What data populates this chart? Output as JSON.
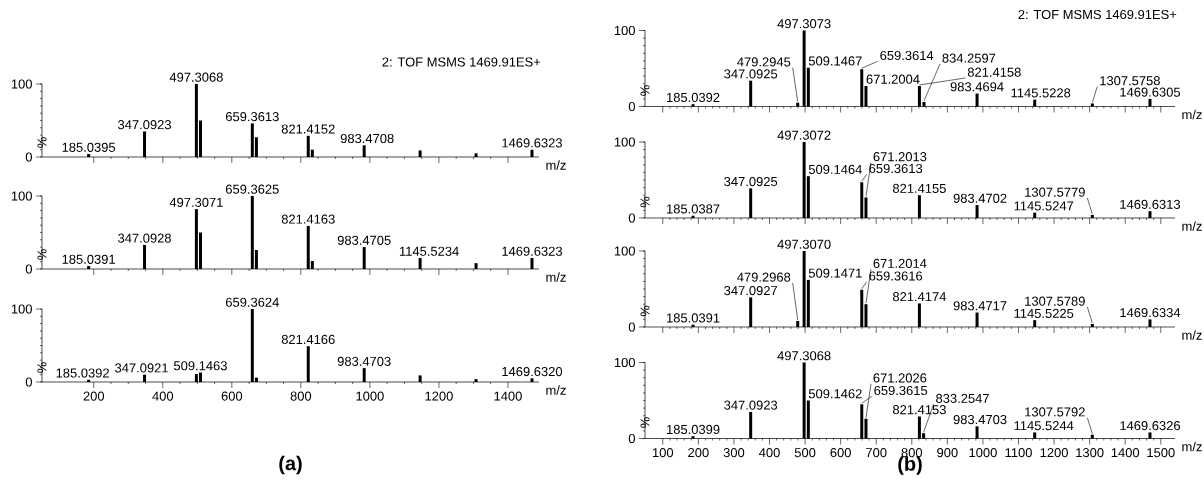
{
  "chart_data": [
    {
      "type": "bar",
      "xlabel": "m/z",
      "ylabel": "%",
      "tick_labels": "y",
      "xlim": [
        50,
        1490
      ],
      "ylim": [
        0,
        100
      ],
      "xticks": [
        200,
        400,
        600,
        800,
        1000,
        1200,
        1400
      ],
      "yticks": [
        0,
        100
      ],
      "x": [
        185.0395,
        347.0923,
        497.3068,
        509.15,
        659.3613,
        671.2,
        821.4152,
        833.25,
        983.4708,
        1145.52,
        1307.58,
        1469.6323
      ],
      "values": [
        4,
        35,
        100,
        50,
        46,
        27,
        29,
        10,
        16,
        9,
        5,
        10
      ],
      "annotations": [
        "2: TOF MSMS 1469.91ES+",
        {
          "text": "185.0395",
          "x": 185.0395,
          "y": 4
        },
        {
          "text": "347.0923",
          "x": 347.0923,
          "y": 35
        },
        {
          "text": "497.3068",
          "x": 497.3068,
          "y": 100
        },
        {
          "text": "659.3613",
          "x": 659.3613,
          "y": 46
        },
        {
          "text": "821.4152",
          "x": 821.4152,
          "y": 29
        },
        {
          "text": "983.4708",
          "x": 983.4708,
          "y": 16
        },
        {
          "text": "1469.6323",
          "x": 1469.6323,
          "y": 10
        }
      ]
    },
    {
      "type": "bar",
      "xlabel": "m/z",
      "ylabel": "%",
      "tick_labels": "y",
      "xlim": [
        50,
        1490
      ],
      "ylim": [
        0,
        100
      ],
      "xticks": [
        200,
        400,
        600,
        800,
        1000,
        1200,
        1400
      ],
      "yticks": [
        0,
        100
      ],
      "x": [
        185.0391,
        347.0928,
        497.3071,
        509.15,
        659.3625,
        671.2,
        821.4163,
        833.25,
        983.4705,
        1145.5234,
        1307.58,
        1469.6323
      ],
      "values": [
        4,
        33,
        82,
        50,
        100,
        26,
        59,
        11,
        30,
        15,
        8,
        15
      ],
      "annotations": [
        {
          "text": "185.0391",
          "x": 185.0391,
          "y": 4
        },
        {
          "text": "347.0928",
          "x": 347.0928,
          "y": 33
        },
        {
          "text": "497.3071",
          "x": 497.3071,
          "y": 82
        },
        {
          "text": "659.3625",
          "x": 659.3625,
          "y": 100
        },
        {
          "text": "821.4163",
          "x": 821.4163,
          "y": 59
        },
        {
          "text": "983.4705",
          "x": 983.4705,
          "y": 30
        },
        {
          "text": "1145.5234",
          "x": 1145.5234,
          "y": 15
        },
        {
          "text": "1469.6323",
          "x": 1469.6323,
          "y": 15
        }
      ]
    },
    {
      "type": "bar",
      "xlabel": "m/z",
      "ylabel": "%",
      "xlim": [
        50,
        1490
      ],
      "ylim": [
        0,
        100
      ],
      "xticks": [
        200,
        400,
        600,
        800,
        1000,
        1200,
        1400
      ],
      "yticks": [
        0,
        100
      ],
      "x": [
        185.0392,
        347.0921,
        497.31,
        509.1463,
        659.3624,
        671.2,
        821.4166,
        983.4703,
        1145.52,
        1307.58,
        1469.632
      ],
      "values": [
        3,
        10,
        11,
        13,
        100,
        6,
        49,
        19,
        9,
        4,
        5
      ],
      "annotations": [
        "(a)",
        {
          "text": "185.0392",
          "x": 185.0392,
          "y": 3
        },
        {
          "text": "347.0921",
          "x": 347.0921,
          "y": 10
        },
        {
          "text": "509.1463",
          "x": 509.1463,
          "y": 13
        },
        {
          "text": "659.3624",
          "x": 659.3624,
          "y": 100
        },
        {
          "text": "821.4166",
          "x": 821.4166,
          "y": 49
        },
        {
          "text": "983.4703",
          "x": 983.4703,
          "y": 19
        },
        {
          "text": "1469.6320",
          "x": 1469.632,
          "y": 5
        }
      ]
    },
    {
      "type": "bar",
      "xlabel": "m/z",
      "ylabel": "%",
      "tick_labels": "y",
      "xlim": [
        50,
        1540
      ],
      "ylim": [
        0,
        100
      ],
      "xticks": [
        100,
        200,
        300,
        400,
        500,
        600,
        700,
        800,
        900,
        1000,
        1100,
        1200,
        1300,
        1400,
        1500
      ],
      "yticks": [
        0,
        100
      ],
      "x": [
        185.0392,
        347.0925,
        479.2945,
        497.3073,
        509.1467,
        659.3614,
        671.2004,
        821.4158,
        834.2597,
        983.4694,
        1145.5228,
        1307.5758,
        1469.6305
      ],
      "values": [
        3,
        34,
        5,
        100,
        51,
        49,
        27,
        27,
        6,
        17,
        9,
        4,
        10
      ],
      "annotations": [
        "2: TOF MSMS 1469.91ES+",
        {
          "text": "185.0392",
          "x": 185.0392,
          "y": 3
        },
        {
          "text": "347.0925",
          "x": 347.0925,
          "y": 34
        },
        {
          "text": "479.2945",
          "x": 479.2945,
          "y": 5
        },
        {
          "text": "497.3073",
          "x": 497.3073,
          "y": 100
        },
        {
          "text": "509.1467",
          "x": 509.1467,
          "y": 51
        },
        {
          "text": "659.3614",
          "x": 659.3614,
          "y": 49
        },
        {
          "text": "671.2004",
          "x": 671.2004,
          "y": 27
        },
        {
          "text": "821.4158",
          "x": 821.4158,
          "y": 27
        },
        {
          "text": "834.2597",
          "x": 834.2597,
          "y": 6
        },
        {
          "text": "983.4694",
          "x": 983.4694,
          "y": 17
        },
        {
          "text": "1145.5228",
          "x": 1145.5228,
          "y": 9
        },
        {
          "text": "1307.5758",
          "x": 1307.5758,
          "y": 4
        },
        {
          "text": "1469.6305",
          "x": 1469.6305,
          "y": 10
        }
      ]
    },
    {
      "type": "bar",
      "xlabel": "m/z",
      "ylabel": "%",
      "tick_labels": "y",
      "xlim": [
        50,
        1540
      ],
      "ylim": [
        0,
        100
      ],
      "xticks": [
        100,
        200,
        300,
        400,
        500,
        600,
        700,
        800,
        900,
        1000,
        1100,
        1200,
        1300,
        1400,
        1500
      ],
      "yticks": [
        0,
        100
      ],
      "x": [
        185.0387,
        347.0925,
        497.3072,
        509.1464,
        659.3613,
        671.2013,
        821.4155,
        983.4702,
        1145.5247,
        1307.5779,
        1469.6313
      ],
      "values": [
        3,
        39,
        100,
        55,
        47,
        27,
        30,
        17,
        7,
        4,
        9
      ],
      "annotations": [
        {
          "text": "185.0387",
          "x": 185.0387,
          "y": 3
        },
        {
          "text": "347.0925",
          "x": 347.0925,
          "y": 39
        },
        {
          "text": "497.3072",
          "x": 497.3072,
          "y": 100
        },
        {
          "text": "509.1464",
          "x": 509.1464,
          "y": 55
        },
        {
          "text": "659.3613",
          "x": 659.3613,
          "y": 47
        },
        {
          "text": "671.2013",
          "x": 671.2013,
          "y": 27
        },
        {
          "text": "821.4155",
          "x": 821.4155,
          "y": 30
        },
        {
          "text": "983.4702",
          "x": 983.4702,
          "y": 17
        },
        {
          "text": "1145.5247",
          "x": 1145.5247,
          "y": 7
        },
        {
          "text": "1307.5779",
          "x": 1307.5779,
          "y": 4
        },
        {
          "text": "1469.6313",
          "x": 1469.6313,
          "y": 9
        }
      ]
    },
    {
      "type": "bar",
      "xlabel": "m/z",
      "ylabel": "%",
      "tick_labels": "y",
      "xlim": [
        50,
        1540
      ],
      "ylim": [
        0,
        100
      ],
      "xticks": [
        100,
        200,
        300,
        400,
        500,
        600,
        700,
        800,
        900,
        1000,
        1100,
        1200,
        1300,
        1400,
        1500
      ],
      "yticks": [
        0,
        100
      ],
      "x": [
        185.0391,
        347.0927,
        479.2968,
        497.307,
        509.1471,
        659.3616,
        671.2014,
        821.4174,
        983.4717,
        1145.5225,
        1307.5789,
        1469.6334
      ],
      "values": [
        3,
        39,
        8,
        100,
        62,
        49,
        30,
        31,
        19,
        9,
        4,
        10
      ],
      "annotations": [
        {
          "text": "185.0391",
          "x": 185.0391,
          "y": 3
        },
        {
          "text": "347.0927",
          "x": 347.0927,
          "y": 39
        },
        {
          "text": "479.2968",
          "x": 479.2968,
          "y": 8
        },
        {
          "text": "497.3070",
          "x": 497.307,
          "y": 100
        },
        {
          "text": "509.1471",
          "x": 509.1471,
          "y": 62
        },
        {
          "text": "659.3616",
          "x": 659.3616,
          "y": 49
        },
        {
          "text": "671.2014",
          "x": 671.2014,
          "y": 30
        },
        {
          "text": "821.4174",
          "x": 821.4174,
          "y": 31
        },
        {
          "text": "983.4717",
          "x": 983.4717,
          "y": 19
        },
        {
          "text": "1145.5225",
          "x": 1145.5225,
          "y": 9
        },
        {
          "text": "1307.5789",
          "x": 1307.5789,
          "y": 4
        },
        {
          "text": "1469.6334",
          "x": 1469.6334,
          "y": 10
        }
      ]
    },
    {
      "type": "bar",
      "xlabel": "m/z",
      "ylabel": "%",
      "xlim": [
        50,
        1540
      ],
      "ylim": [
        0,
        100
      ],
      "xticks": [
        100,
        200,
        300,
        400,
        500,
        600,
        700,
        800,
        900,
        1000,
        1100,
        1200,
        1300,
        1400,
        1500
      ],
      "yticks": [
        0,
        100
      ],
      "x": [
        185.0399,
        347.0923,
        497.3068,
        509.1462,
        659.3615,
        671.2026,
        821.4153,
        833.2547,
        983.4703,
        1145.5244,
        1307.5792,
        1469.6326
      ],
      "values": [
        3,
        35,
        100,
        50,
        45,
        26,
        29,
        7,
        16,
        8,
        5,
        8
      ],
      "annotations": [
        "(b)",
        {
          "text": "185.0399",
          "x": 185.0399,
          "y": 3
        },
        {
          "text": "347.0923",
          "x": 347.0923,
          "y": 35
        },
        {
          "text": "497.3068",
          "x": 497.3068,
          "y": 100
        },
        {
          "text": "509.1462",
          "x": 509.1462,
          "y": 50
        },
        {
          "text": "659.3615",
          "x": 659.3615,
          "y": 45
        },
        {
          "text": "671.2026",
          "x": 671.2026,
          "y": 26
        },
        {
          "text": "821.4153",
          "x": 821.4153,
          "y": 29
        },
        {
          "text": "833.2547",
          "x": 833.2547,
          "y": 7
        },
        {
          "text": "983.4703",
          "x": 983.4703,
          "y": 16
        },
        {
          "text": "1145.5244",
          "x": 1145.5244,
          "y": 8
        },
        {
          "text": "1307.5792",
          "x": 1307.5792,
          "y": 5
        },
        {
          "text": "1469.6326",
          "x": 1469.6326,
          "y": 8
        }
      ]
    }
  ]
}
